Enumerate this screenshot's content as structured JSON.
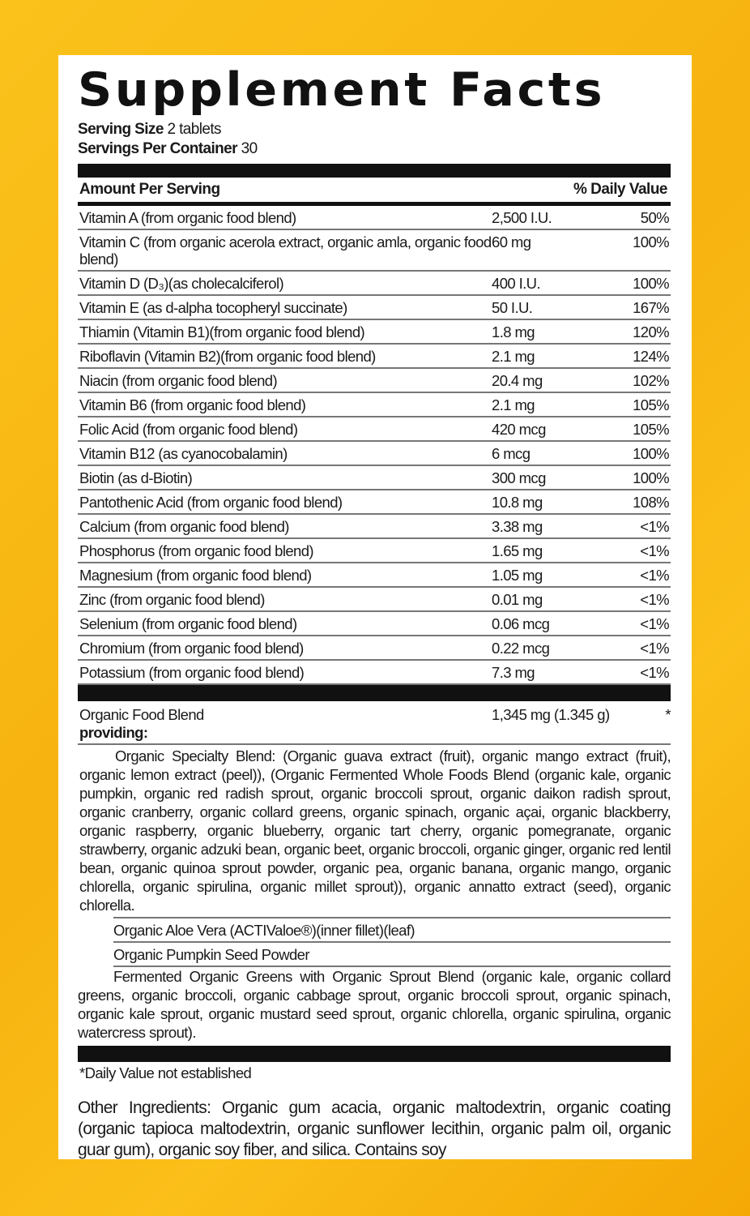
{
  "title": "Supplement Facts",
  "serving_size_label": "Serving Size",
  "serving_size_value": "2 tablets",
  "servings_per_container_label": "Servings Per Container",
  "servings_per_container_value": "30",
  "header": {
    "amount": "Amount Per Serving",
    "dv": "% Daily Value"
  },
  "nutrients": [
    {
      "name": "Vitamin A (from organic food blend)",
      "amount": "2,500 I.U.",
      "dv": "50%"
    },
    {
      "name": "Vitamin C (from organic acerola extract, organic amla, organic food blend)",
      "amount": "60 mg",
      "dv": "100%"
    },
    {
      "name": "Vitamin D (D₃)(as cholecalciferol)",
      "amount": "400 I.U.",
      "dv": "100%"
    },
    {
      "name": "Vitamin E (as d-alpha tocopheryl succinate)",
      "amount": "50 I.U.",
      "dv": "167%"
    },
    {
      "name": "Thiamin (Vitamin B1)(from organic food blend)",
      "amount": "1.8 mg",
      "dv": "120%"
    },
    {
      "name": "Riboflavin (Vitamin B2)(from organic food blend)",
      "amount": "2.1 mg",
      "dv": "124%"
    },
    {
      "name": "Niacin (from organic food blend)",
      "amount": "20.4 mg",
      "dv": "102%"
    },
    {
      "name": "Vitamin B6 (from organic food blend)",
      "amount": "2.1 mg",
      "dv": "105%"
    },
    {
      "name": "Folic Acid (from organic food blend)",
      "amount": "420 mcg",
      "dv": "105%"
    },
    {
      "name": "Vitamin B12 (as cyanocobalamin)",
      "amount": "6 mcg",
      "dv": "100%"
    },
    {
      "name": "Biotin (as d-Biotin)",
      "amount": "300 mcg",
      "dv": "100%"
    },
    {
      "name": "Pantothenic Acid (from organic food blend)",
      "amount": "10.8 mg",
      "dv": "108%"
    },
    {
      "name": "Calcium (from organic food blend)",
      "amount": "3.38 mg",
      "dv": "<1%"
    },
    {
      "name": "Phosphorus (from organic food blend)",
      "amount": "1.65 mg",
      "dv": "<1%"
    },
    {
      "name": "Magnesium (from organic food blend)",
      "amount": "1.05 mg",
      "dv": "<1%"
    },
    {
      "name": "Zinc (from organic food blend)",
      "amount": "0.01 mg",
      "dv": "<1%"
    },
    {
      "name": "Selenium (from organic food blend)",
      "amount": "0.06 mcg",
      "dv": "<1%"
    },
    {
      "name": "Chromium (from organic food blend)",
      "amount": "0.22 mcg",
      "dv": "<1%"
    },
    {
      "name": "Potassium (from organic food blend)",
      "amount": "7.3 mg",
      "dv": "<1%"
    }
  ],
  "blend": {
    "name": "Organic Food Blend",
    "providing": "providing:",
    "amount": "1,345 mg (1.345 g)",
    "dv": "*",
    "specialty": "Organic Specialty Blend: (Organic guava extract (fruit), organic mango extract (fruit), organic lemon extract (peel)), (Organic Fermented Whole Foods Blend (organic kale, organic pumpkin, organic red radish sprout, organic broccoli sprout, organic daikon radish sprout, organic cranberry, organic collard greens, organic spinach, organic açai, organic blackberry, organic raspberry, organic blueberry, organic tart cherry, organic pomegranate, organic strawberry, organic adzuki bean, organic beet, organic broccoli, organic ginger, organic red lentil bean, organic quinoa sprout powder, organic pea, organic banana, organic mango, organic chlorella, organic spirulina, organic millet sprout)), organic annatto extract (seed), organic chlorella.",
    "aloe": "Organic Aloe Vera (ACTIValoe®)(inner fillet)(leaf)",
    "pumpkin": "Organic Pumpkin Seed Powder",
    "greens": "Fermented Organic Greens with Organic Sprout Blend (organic kale, organic collard greens, organic broccoli, organic cabbage sprout, organic broccoli sprout, organic spinach, organic kale sprout, organic mustard seed sprout, organic chlorella, organic spirulina, organic watercress sprout)."
  },
  "footnote": "*Daily Value not established",
  "other_ingredients": "Other Ingredients: Organic gum acacia, organic maltodextrin, organic coating (organic tapioca maltodextrin, organic sunflower lecithin, organic palm oil, organic guar gum), organic soy fiber, and silica. Contains soy"
}
